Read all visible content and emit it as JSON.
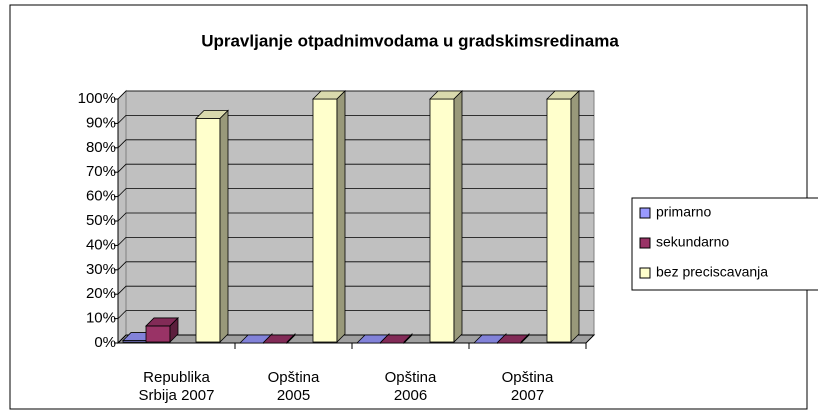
{
  "chart_data": {
    "type": "bar3d",
    "title": "Upravljanje otpadnimvodama u gradskimsredinama",
    "categories": [
      "Republika Srbija 2007",
      "Opština 2005",
      "Opština 2006",
      "Opština 2007"
    ],
    "series": [
      {
        "name": "primarno",
        "color": "#9999ff",
        "values": [
          1,
          0,
          0,
          0
        ]
      },
      {
        "name": "sekundarno",
        "color": "#993366",
        "values": [
          7,
          0,
          0,
          0
        ]
      },
      {
        "name": "bez preciscavanja",
        "color": "#ffffcc",
        "values": [
          92,
          100,
          100,
          100
        ]
      }
    ],
    "ylim": [
      0,
      100
    ],
    "yticks": [
      {
        "value": 0,
        "label": "0%"
      },
      {
        "value": 10,
        "label": "10%"
      },
      {
        "value": 20,
        "label": "20%"
      },
      {
        "value": 30,
        "label": "30%"
      },
      {
        "value": 40,
        "label": "40%"
      },
      {
        "value": 50,
        "label": "50%"
      },
      {
        "value": 60,
        "label": "60%"
      },
      {
        "value": 70,
        "label": "70%"
      },
      {
        "value": 80,
        "label": "80%"
      },
      {
        "value": 90,
        "label": "90%"
      },
      {
        "value": 100,
        "label": "100%"
      }
    ],
    "grid": true,
    "legend": "right"
  }
}
